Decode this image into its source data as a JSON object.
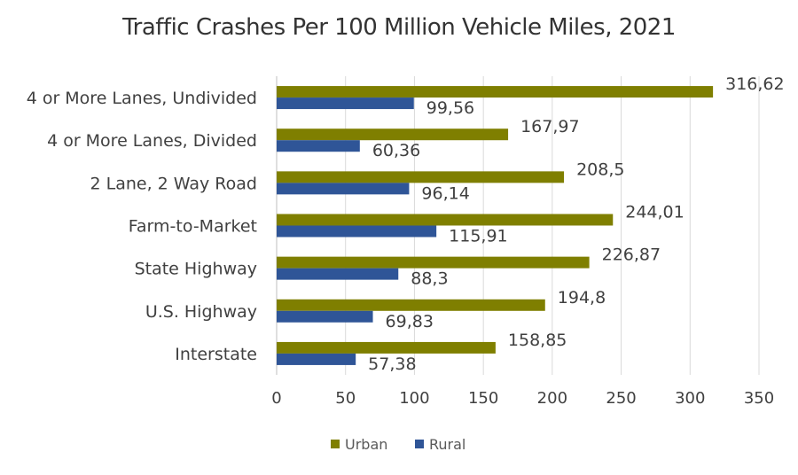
{
  "chart_data": {
    "type": "bar",
    "orientation": "horizontal",
    "title": "Traffic Crashes Per 100 Million Vehicle Miles, 2021",
    "categories": [
      "4 or More Lanes, Undivided",
      "4 or More Lanes, Divided",
      "2 Lane, 2 Way Road",
      "Farm-to-Market",
      "State Highway",
      "U.S. Highway",
      "Interstate"
    ],
    "series": [
      {
        "name": "Urban",
        "color": "#7f7f00",
        "values": [
          316.62,
          167.97,
          208.5,
          244.01,
          226.87,
          194.8,
          158.85
        ],
        "labels": [
          "316,62",
          "167,97",
          "208,5",
          "244,01",
          "226,87",
          "194,8",
          "158,85"
        ]
      },
      {
        "name": "Rural",
        "color": "#2f5597",
        "values": [
          99.56,
          60.36,
          96.14,
          115.91,
          88.3,
          69.83,
          57.38
        ],
        "labels": [
          "99,56",
          "60,36",
          "96,14",
          "115,91",
          "88,3",
          "69,83",
          "57,38"
        ]
      }
    ],
    "xlim": [
      0,
      350
    ],
    "xticks": [
      0,
      50,
      100,
      150,
      200,
      250,
      300,
      350
    ],
    "grid": "vertical",
    "legend": "bottom-center"
  }
}
